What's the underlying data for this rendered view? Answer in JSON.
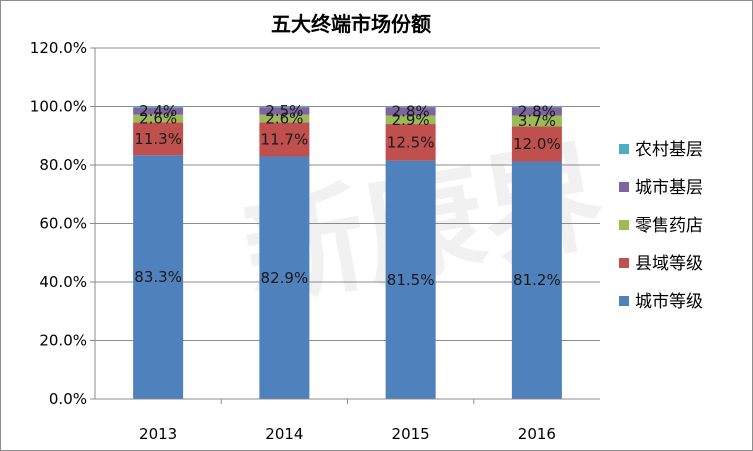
{
  "chart_data": {
    "type": "bar",
    "stacked": true,
    "title": "五大终端市场份额",
    "xlabel": "",
    "ylabel": "",
    "categories": [
      "2013",
      "2014",
      "2015",
      "2016"
    ],
    "ylim": [
      0,
      120
    ],
    "yticks": [
      "0.0%",
      "20.0%",
      "40.0%",
      "60.0%",
      "80.0%",
      "100.0%",
      "120.0%"
    ],
    "grid": true,
    "legend_position": "right",
    "series": [
      {
        "name": "城市等级",
        "color": "#4f81bd",
        "values": [
          83.3,
          82.9,
          81.5,
          81.2
        ],
        "labels": [
          "83.3%",
          "82.9%",
          "81.5%",
          "81.2%"
        ]
      },
      {
        "name": "县域等级",
        "color": "#c0504d",
        "values": [
          11.3,
          11.7,
          12.5,
          12.0
        ],
        "labels": [
          "11.3%",
          "11.7%",
          "12.5%",
          "12.0%"
        ]
      },
      {
        "name": "零售药店",
        "color": "#9bbb59",
        "values": [
          2.6,
          2.6,
          2.9,
          3.7
        ],
        "labels": [
          "2.6%",
          "2.6%",
          "2.9%",
          "3.7%"
        ]
      },
      {
        "name": "城市基层",
        "color": "#8064a2",
        "values": [
          2.4,
          2.5,
          2.8,
          2.8
        ],
        "labels": [
          "2.4%",
          "2.5%",
          "2.8%",
          "2.8%"
        ]
      },
      {
        "name": "农村基层",
        "color": "#4bacc6",
        "values": [
          0.4,
          0.3,
          0.3,
          0.3
        ],
        "labels": []
      }
    ],
    "legend_order": [
      "农村基层",
      "城市基层",
      "零售药店",
      "县域等级",
      "城市等级"
    ],
    "watermark": "新康界"
  }
}
